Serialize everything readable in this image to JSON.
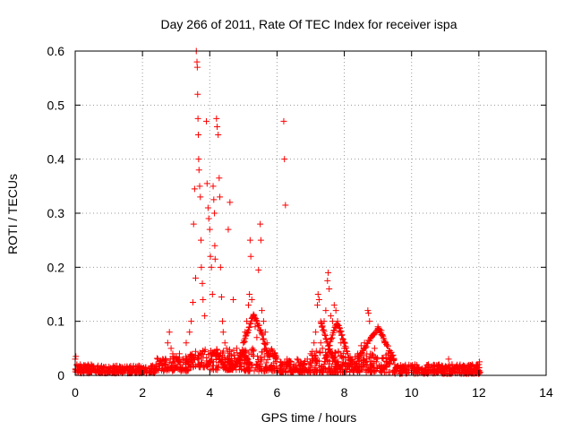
{
  "chart_data": {
    "type": "scatter",
    "title": "Day 266 of 2011, Rate Of TEC Index for receiver ispa",
    "xlabel": "GPS time / hours",
    "ylabel": "ROTI / TECUs",
    "xlim": [
      0,
      14
    ],
    "ylim": [
      0,
      0.6
    ],
    "xticks": [
      "0",
      "2",
      "4",
      "6",
      "8",
      "10",
      "12",
      "14"
    ],
    "yticks": [
      "0",
      "0.1",
      "0.2",
      "0.3",
      "0.4",
      "0.5",
      "0.6"
    ],
    "grid": true,
    "marker": "plus",
    "color": "#ff0000",
    "points": [
      [
        0.0,
        0.03
      ],
      [
        0.02,
        0.035
      ],
      [
        0.05,
        0.02
      ],
      [
        0.08,
        0.015
      ],
      [
        0.1,
        0.01
      ],
      [
        0.15,
        0.02
      ],
      [
        0.2,
        0.012
      ],
      [
        0.25,
        0.008
      ],
      [
        0.3,
        0.015
      ],
      [
        0.35,
        0.01
      ],
      [
        0.4,
        0.005
      ],
      [
        0.45,
        0.012
      ],
      [
        0.5,
        0.018
      ],
      [
        0.6,
        0.01
      ],
      [
        0.7,
        0.008
      ],
      [
        0.8,
        0.012
      ],
      [
        0.9,
        0.015
      ],
      [
        1.0,
        0.01
      ],
      [
        1.1,
        0.008
      ],
      [
        1.2,
        0.012
      ],
      [
        1.3,
        0.01
      ],
      [
        1.4,
        0.015
      ],
      [
        1.5,
        0.012
      ],
      [
        1.6,
        0.008
      ],
      [
        1.7,
        0.01
      ],
      [
        1.8,
        0.015
      ],
      [
        1.9,
        0.012
      ],
      [
        2.0,
        0.01
      ],
      [
        2.1,
        0.015
      ],
      [
        2.2,
        0.012
      ],
      [
        2.3,
        0.018
      ],
      [
        2.4,
        0.02
      ],
      [
        2.5,
        0.025
      ],
      [
        2.6,
        0.03
      ],
      [
        2.7,
        0.028
      ],
      [
        2.75,
        0.06
      ],
      [
        2.8,
        0.08
      ],
      [
        2.85,
        0.05
      ],
      [
        2.9,
        0.04
      ],
      [
        3.0,
        0.035
      ],
      [
        3.1,
        0.04
      ],
      [
        3.2,
        0.03
      ],
      [
        3.3,
        0.06
      ],
      [
        3.4,
        0.08
      ],
      [
        3.45,
        0.1
      ],
      [
        3.5,
        0.135
      ],
      [
        3.52,
        0.28
      ],
      [
        3.55,
        0.345
      ],
      [
        3.58,
        0.18
      ],
      [
        3.6,
        0.6
      ],
      [
        3.62,
        0.58
      ],
      [
        3.63,
        0.57
      ],
      [
        3.64,
        0.52
      ],
      [
        3.65,
        0.475
      ],
      [
        3.66,
        0.445
      ],
      [
        3.67,
        0.4
      ],
      [
        3.68,
        0.38
      ],
      [
        3.7,
        0.35
      ],
      [
        3.72,
        0.33
      ],
      [
        3.74,
        0.25
      ],
      [
        3.75,
        0.2
      ],
      [
        3.78,
        0.17
      ],
      [
        3.8,
        0.14
      ],
      [
        3.85,
        0.11
      ],
      [
        3.9,
        0.47
      ],
      [
        3.92,
        0.355
      ],
      [
        3.95,
        0.31
      ],
      [
        3.97,
        0.29
      ],
      [
        4.0,
        0.27
      ],
      [
        4.02,
        0.22
      ],
      [
        4.05,
        0.2
      ],
      [
        4.08,
        0.15
      ],
      [
        4.1,
        0.35
      ],
      [
        4.12,
        0.325
      ],
      [
        4.14,
        0.3
      ],
      [
        4.15,
        0.24
      ],
      [
        4.16,
        0.215
      ],
      [
        4.2,
        0.475
      ],
      [
        4.22,
        0.46
      ],
      [
        4.25,
        0.445
      ],
      [
        4.28,
        0.365
      ],
      [
        4.3,
        0.33
      ],
      [
        4.32,
        0.2
      ],
      [
        4.35,
        0.145
      ],
      [
        4.38,
        0.1
      ],
      [
        4.4,
        0.08
      ],
      [
        4.45,
        0.06
      ],
      [
        4.5,
        0.05
      ],
      [
        4.55,
        0.27
      ],
      [
        4.6,
        0.32
      ],
      [
        4.7,
        0.14
      ],
      [
        4.8,
        0.05
      ],
      [
        4.9,
        0.04
      ],
      [
        5.0,
        0.06
      ],
      [
        5.05,
        0.08
      ],
      [
        5.1,
        0.1
      ],
      [
        5.15,
        0.13
      ],
      [
        5.18,
        0.15
      ],
      [
        5.2,
        0.25
      ],
      [
        5.22,
        0.22
      ],
      [
        5.25,
        0.14
      ],
      [
        5.3,
        0.11
      ],
      [
        5.35,
        0.09
      ],
      [
        5.4,
        0.07
      ],
      [
        5.45,
        0.195
      ],
      [
        5.5,
        0.28
      ],
      [
        5.52,
        0.25
      ],
      [
        5.55,
        0.12
      ],
      [
        5.6,
        0.1
      ],
      [
        5.65,
        0.08
      ],
      [
        5.7,
        0.06
      ],
      [
        5.8,
        0.04
      ],
      [
        5.9,
        0.035
      ],
      [
        6.0,
        0.03
      ],
      [
        6.1,
        0.025
      ],
      [
        6.2,
        0.47
      ],
      [
        6.22,
        0.4
      ],
      [
        6.25,
        0.315
      ],
      [
        6.3,
        0.03
      ],
      [
        6.4,
        0.025
      ],
      [
        6.5,
        0.02
      ],
      [
        6.6,
        0.03
      ],
      [
        6.7,
        0.025
      ],
      [
        6.8,
        0.02
      ],
      [
        6.9,
        0.03
      ],
      [
        7.0,
        0.04
      ],
      [
        7.1,
        0.06
      ],
      [
        7.15,
        0.08
      ],
      [
        7.2,
        0.13
      ],
      [
        7.22,
        0.15
      ],
      [
        7.25,
        0.14
      ],
      [
        7.3,
        0.06
      ],
      [
        7.35,
        0.05
      ],
      [
        7.4,
        0.1
      ],
      [
        7.45,
        0.12
      ],
      [
        7.5,
        0.175
      ],
      [
        7.52,
        0.19
      ],
      [
        7.55,
        0.16
      ],
      [
        7.6,
        0.11
      ],
      [
        7.65,
        0.1
      ],
      [
        7.7,
        0.13
      ],
      [
        7.75,
        0.12
      ],
      [
        7.8,
        0.1
      ],
      [
        7.85,
        0.08
      ],
      [
        7.9,
        0.06
      ],
      [
        8.0,
        0.05
      ],
      [
        8.1,
        0.04
      ],
      [
        8.2,
        0.03
      ],
      [
        8.3,
        0.025
      ],
      [
        8.4,
        0.04
      ],
      [
        8.5,
        0.055
      ],
      [
        8.6,
        0.06
      ],
      [
        8.7,
        0.12
      ],
      [
        8.72,
        0.115
      ],
      [
        8.75,
        0.1
      ],
      [
        8.8,
        0.07
      ],
      [
        8.9,
        0.05
      ],
      [
        9.0,
        0.09
      ],
      [
        9.05,
        0.085
      ],
      [
        9.1,
        0.075
      ],
      [
        9.2,
        0.06
      ],
      [
        9.3,
        0.04
      ],
      [
        9.4,
        0.03
      ],
      [
        9.5,
        0.02
      ],
      [
        9.6,
        0.015
      ],
      [
        9.7,
        0.012
      ],
      [
        9.8,
        0.01
      ],
      [
        9.9,
        0.015
      ],
      [
        10.0,
        0.012
      ],
      [
        10.1,
        0.02
      ],
      [
        10.2,
        0.015
      ],
      [
        10.3,
        0.01
      ],
      [
        10.4,
        0.012
      ],
      [
        10.5,
        0.02
      ],
      [
        10.6,
        0.015
      ],
      [
        10.7,
        0.01
      ],
      [
        10.8,
        0.012
      ],
      [
        10.9,
        0.018
      ],
      [
        11.0,
        0.015
      ],
      [
        11.1,
        0.03
      ],
      [
        11.2,
        0.02
      ],
      [
        11.3,
        0.015
      ],
      [
        11.4,
        0.012
      ],
      [
        11.5,
        0.01
      ],
      [
        11.6,
        0.015
      ],
      [
        11.7,
        0.012
      ],
      [
        11.8,
        0.02
      ],
      [
        11.9,
        0.015
      ],
      [
        12.0,
        0.02
      ],
      [
        12.02,
        0.025
      ]
    ],
    "band_seeds": [
      [
        0.0,
        0.6,
        0.004,
        0.02
      ],
      [
        0.6,
        2.4,
        0.004,
        0.018
      ],
      [
        2.4,
        3.4,
        0.008,
        0.035
      ],
      [
        3.4,
        4.0,
        0.015,
        0.05
      ],
      [
        4.0,
        5.0,
        0.01,
        0.05
      ],
      [
        5.0,
        6.0,
        0.008,
        0.05
      ],
      [
        6.0,
        7.0,
        0.005,
        0.03
      ],
      [
        7.0,
        8.0,
        0.005,
        0.045
      ],
      [
        8.0,
        9.5,
        0.005,
        0.04
      ],
      [
        9.5,
        12.05,
        0.003,
        0.02
      ]
    ],
    "curves": [
      [
        [
          4.1,
          0.04
        ],
        [
          4.25,
          0.035
        ],
        [
          4.4,
          0.02
        ],
        [
          4.5,
          0.012
        ],
        [
          4.6,
          0.01
        ],
        [
          4.75,
          0.02
        ],
        [
          4.9,
          0.035
        ],
        [
          5.0,
          0.045
        ],
        [
          5.1,
          0.03
        ],
        [
          5.2,
          0.02
        ]
      ],
      [
        [
          5.0,
          0.06
        ],
        [
          5.1,
          0.075
        ],
        [
          5.2,
          0.095
        ],
        [
          5.3,
          0.11
        ],
        [
          5.4,
          0.1
        ],
        [
          5.5,
          0.085
        ],
        [
          5.6,
          0.065
        ],
        [
          5.7,
          0.045
        ],
        [
          5.8,
          0.03
        ]
      ],
      [
        [
          7.4,
          0.02
        ],
        [
          7.5,
          0.04
        ],
        [
          7.6,
          0.065
        ],
        [
          7.7,
          0.085
        ],
        [
          7.8,
          0.095
        ],
        [
          7.9,
          0.08
        ],
        [
          8.0,
          0.06
        ],
        [
          8.1,
          0.04
        ]
      ],
      [
        [
          8.4,
          0.03
        ],
        [
          8.55,
          0.045
        ],
        [
          8.7,
          0.06
        ],
        [
          8.85,
          0.075
        ],
        [
          9.0,
          0.085
        ],
        [
          9.1,
          0.08
        ],
        [
          9.2,
          0.065
        ],
        [
          9.35,
          0.045
        ],
        [
          9.5,
          0.03
        ]
      ],
      [
        [
          7.3,
          0.1
        ],
        [
          7.35,
          0.09
        ],
        [
          7.45,
          0.07
        ],
        [
          7.55,
          0.05
        ],
        [
          7.65,
          0.035
        ],
        [
          7.75,
          0.025
        ],
        [
          7.85,
          0.015
        ]
      ]
    ]
  }
}
